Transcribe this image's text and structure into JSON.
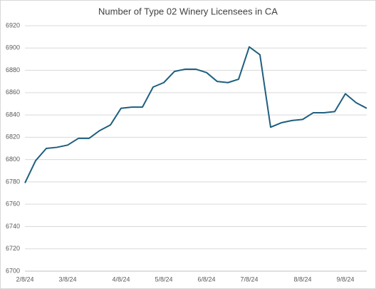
{
  "chart_data": {
    "type": "line",
    "title": "Number of Type 02 Winery Licensees in CA",
    "categories": [
      "2/8/24",
      null,
      null,
      null,
      "3/8/24",
      null,
      null,
      null,
      null,
      "4/8/24",
      null,
      null,
      null,
      "5/8/24",
      null,
      null,
      null,
      "6/8/24",
      null,
      null,
      null,
      "7/8/24",
      null,
      null,
      null,
      null,
      "8/8/24",
      null,
      null,
      null,
      "9/8/24",
      null,
      null
    ],
    "series": [
      {
        "name": "Number of Type 02 Winery Licensees in CA",
        "color": "#1f5f7f",
        "values": [
          6779,
          6799,
          6810,
          6811,
          6813,
          6819,
          6819,
          6826,
          6831,
          6846,
          6847,
          6847,
          6865,
          6869,
          6879,
          6881,
          6881,
          6878,
          6870,
          6869,
          6872,
          6901,
          6894,
          6829,
          6833,
          6835,
          6836,
          6842,
          6842,
          6843,
          6859,
          6851,
          6846
        ]
      }
    ],
    "ylim": [
      6700,
      6920
    ],
    "yticks": [
      6700,
      6720,
      6740,
      6760,
      6780,
      6800,
      6820,
      6840,
      6860,
      6880,
      6900,
      6920
    ],
    "grid": true
  }
}
